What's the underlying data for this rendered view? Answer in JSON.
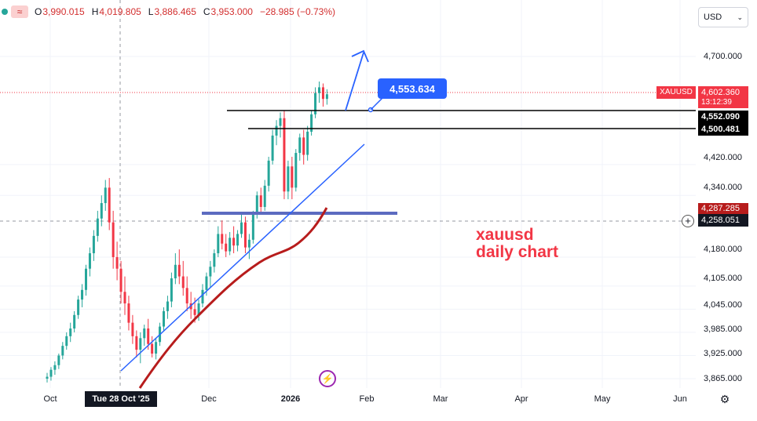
{
  "ohlc": {
    "open_label": "O",
    "open": "3,990.015",
    "high_label": "H",
    "high": "4,019.805",
    "low_label": "L",
    "low": "3,886.465",
    "close_label": "C",
    "close": "3,953.000",
    "change": "−28.985 (−0.73%)",
    "wave_icon": "≈"
  },
  "currency": {
    "value": "USD",
    "chevron": "⌄"
  },
  "price_axis": {
    "labels": [
      "4,700.000",
      "4,420.000",
      "4,340.000",
      "4,180.000",
      "4,105.000",
      "4,045.000",
      "3,985.000",
      "3,925.000",
      "3,865.000"
    ]
  },
  "tags": {
    "symbol": "XAUUSD",
    "last_price": "4,602.360",
    "countdown": "13:12:39",
    "level_1": "4,552.090",
    "level_2": "4,500.481",
    "sma": "4,287.285",
    "crosshair_price": "4,258.051",
    "plus": "+"
  },
  "callout": {
    "value": "4,553.634"
  },
  "annotation": {
    "line1": "xauusd",
    "line2": "daily chart"
  },
  "time_axis": {
    "labels": [
      "Oct",
      "Dec",
      "2026",
      "Feb",
      "Mar",
      "Apr",
      "May",
      "Jun"
    ],
    "crosshair_date": "Tue 28 Oct '25"
  },
  "icons": {
    "brand": "⚡",
    "settings": "⚙"
  },
  "colors": {
    "up": "#26a69a",
    "down": "#f23645",
    "trendline": "#2962ff",
    "sma": "#b71c1c",
    "level": "#000000",
    "support": "#5c6bc0"
  },
  "chart_data": {
    "type": "candlestick",
    "instrument": "XAUUSD",
    "timeframe": "1D",
    "ylim": [
      3840,
      4780
    ],
    "x_ticks": [
      "Oct",
      "Dec",
      "2026",
      "Feb",
      "Mar",
      "Apr",
      "May",
      "Jun"
    ],
    "candles": [
      [
        3865,
        3880,
        3855,
        3870
      ],
      [
        3870,
        3895,
        3860,
        3888
      ],
      [
        3888,
        3910,
        3875,
        3900
      ],
      [
        3900,
        3930,
        3890,
        3925
      ],
      [
        3925,
        3960,
        3915,
        3950
      ],
      [
        3950,
        3985,
        3940,
        3975
      ],
      [
        3975,
        4010,
        3960,
        3995
      ],
      [
        3995,
        4040,
        3985,
        4030
      ],
      [
        4030,
        4080,
        4020,
        4070
      ],
      [
        4070,
        4110,
        4050,
        4095
      ],
      [
        4095,
        4160,
        4080,
        4150
      ],
      [
        4150,
        4205,
        4130,
        4190
      ],
      [
        4190,
        4250,
        4170,
        4235
      ],
      [
        4235,
        4300,
        4220,
        4280
      ],
      [
        4280,
        4340,
        4260,
        4320
      ],
      [
        4320,
        4380,
        4300,
        4360
      ],
      [
        4360,
        4385,
        4250,
        4270
      ],
      [
        4270,
        4300,
        4150,
        4180
      ],
      [
        4180,
        4220,
        4120,
        4150
      ],
      [
        4150,
        4170,
        4060,
        4090
      ],
      [
        4090,
        4130,
        4030,
        4060
      ],
      [
        4060,
        4080,
        3990,
        4010
      ],
      [
        4010,
        4030,
        3955,
        3975
      ],
      [
        3975,
        3990,
        3920,
        3940
      ],
      [
        3940,
        3985,
        3905,
        3970
      ],
      [
        3970,
        4005,
        3950,
        3995
      ],
      [
        3995,
        4020,
        3940,
        3955
      ],
      [
        3955,
        3975,
        3920,
        3930
      ],
      [
        3930,
        3970,
        3915,
        3960
      ],
      [
        3960,
        4010,
        3950,
        4000
      ],
      [
        4000,
        4050,
        3990,
        4040
      ],
      [
        4040,
        4080,
        4020,
        4065
      ],
      [
        4065,
        4140,
        4050,
        4125
      ],
      [
        4125,
        4190,
        4110,
        4160
      ],
      [
        4160,
        4200,
        4110,
        4130
      ],
      [
        4130,
        4170,
        4080,
        4100
      ],
      [
        4100,
        4130,
        4040,
        4060
      ],
      [
        4060,
        4090,
        4020,
        4045
      ],
      [
        4045,
        4075,
        4010,
        4030
      ],
      [
        4030,
        4070,
        4015,
        4060
      ],
      [
        4060,
        4110,
        4050,
        4095
      ],
      [
        4095,
        4140,
        4080,
        4130
      ],
      [
        4130,
        4170,
        4100,
        4155
      ],
      [
        4155,
        4200,
        4140,
        4190
      ],
      [
        4190,
        4260,
        4180,
        4240
      ],
      [
        4240,
        4275,
        4200,
        4215
      ],
      [
        4215,
        4240,
        4180,
        4195
      ],
      [
        4195,
        4245,
        4185,
        4230
      ],
      [
        4230,
        4260,
        4190,
        4210
      ],
      [
        4210,
        4250,
        4195,
        4240
      ],
      [
        4240,
        4290,
        4230,
        4270
      ],
      [
        4270,
        4285,
        4190,
        4205
      ],
      [
        4205,
        4240,
        4175,
        4225
      ],
      [
        4225,
        4300,
        4215,
        4290
      ],
      [
        4290,
        4350,
        4280,
        4340
      ],
      [
        4340,
        4360,
        4290,
        4310
      ],
      [
        4310,
        4380,
        4300,
        4365
      ],
      [
        4365,
        4440,
        4350,
        4430
      ],
      [
        4430,
        4510,
        4420,
        4495
      ],
      [
        4495,
        4535,
        4470,
        4520
      ],
      [
        4520,
        4555,
        4490,
        4540
      ],
      [
        4540,
        4560,
        4330,
        4350
      ],
      [
        4350,
        4430,
        4330,
        4415
      ],
      [
        4415,
        4440,
        4330,
        4360
      ],
      [
        4360,
        4460,
        4350,
        4450
      ],
      [
        4450,
        4500,
        4430,
        4490
      ],
      [
        4490,
        4510,
        4420,
        4445
      ],
      [
        4445,
        4520,
        4430,
        4505
      ],
      [
        4505,
        4560,
        4495,
        4550
      ],
      [
        4550,
        4620,
        4540,
        4605
      ],
      [
        4605,
        4635,
        4580,
        4620
      ],
      [
        4620,
        4630,
        4570,
        4590
      ],
      [
        4590,
        4615,
        4575,
        4602
      ]
    ],
    "horizontal_levels": [
      4552.09,
      4500.481
    ],
    "sma_end": 4287.285,
    "support_level": 4258.051,
    "callout_price": 4553.634,
    "last_price": 4602.36
  }
}
